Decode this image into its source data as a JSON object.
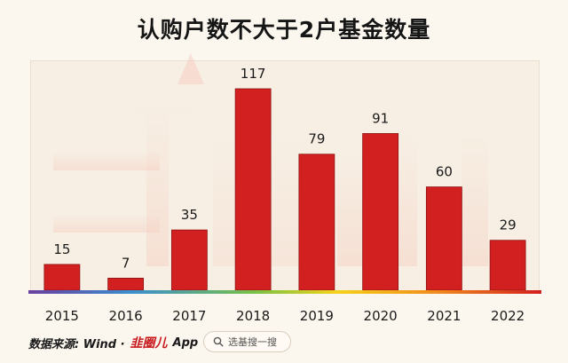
{
  "chart_data": {
    "type": "bar",
    "title": "认购户数不大于2户基金数量",
    "categories": [
      "2015",
      "2016",
      "2017",
      "2018",
      "2019",
      "2020",
      "2021",
      "2022"
    ],
    "values": [
      15,
      7,
      35,
      117,
      79,
      91,
      60,
      29
    ],
    "ylim": [
      0,
      130
    ],
    "grid": false,
    "bar_color": "#d21f1f",
    "xlabel": "",
    "ylabel": ""
  },
  "footer": {
    "source_label": "数据来源: Wind ·",
    "brand_text": "韭圈儿",
    "app_text": "App"
  },
  "search": {
    "placeholder": "选基搜一搜",
    "icon": "search-icon"
  },
  "watermark": "韭圈儿"
}
